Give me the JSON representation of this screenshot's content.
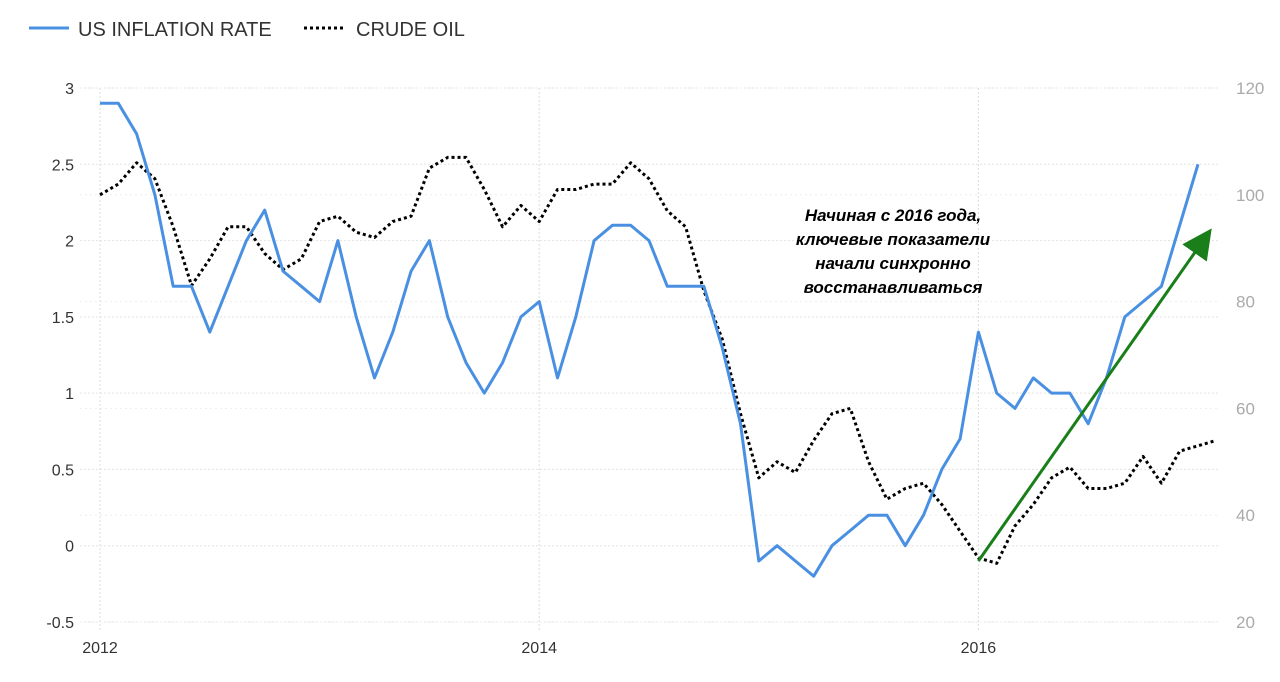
{
  "chart_data": {
    "type": "line",
    "legend_position": "top-left",
    "grid": true,
    "colors": {
      "inflation": "#4a90e2",
      "oil": "#000000",
      "arrow": "#1a7f1a"
    },
    "y_left": {
      "range": [
        -0.5,
        3
      ],
      "ticks": [
        "3",
        "2.5",
        "2",
        "1.5",
        "1",
        "0.5",
        "0",
        "-0.5"
      ]
    },
    "y_right": {
      "range": [
        20,
        120
      ],
      "ticks": [
        "120",
        "100",
        "80",
        "60",
        "40",
        "20"
      ]
    },
    "x_axis": {
      "range": [
        "2012-01",
        "2017-02"
      ],
      "ticks": [
        "2012",
        "2014",
        "2016"
      ]
    },
    "series": [
      {
        "name": "US INFLATION RATE",
        "axis": "left",
        "style": "solid",
        "x": [
          "2012-01",
          "2012-02",
          "2012-03",
          "2012-04",
          "2012-05",
          "2012-06",
          "2012-07",
          "2012-08",
          "2012-09",
          "2012-10",
          "2012-11",
          "2012-12",
          "2013-01",
          "2013-02",
          "2013-03",
          "2013-04",
          "2013-05",
          "2013-06",
          "2013-07",
          "2013-08",
          "2013-09",
          "2013-10",
          "2013-11",
          "2013-12",
          "2014-01",
          "2014-02",
          "2014-03",
          "2014-04",
          "2014-05",
          "2014-06",
          "2014-07",
          "2014-08",
          "2014-09",
          "2014-10",
          "2014-11",
          "2014-12",
          "2015-01",
          "2015-02",
          "2015-03",
          "2015-04",
          "2015-05",
          "2015-06",
          "2015-07",
          "2015-08",
          "2015-09",
          "2015-10",
          "2015-11",
          "2015-12",
          "2016-01",
          "2016-02",
          "2016-03",
          "2016-04",
          "2016-05",
          "2016-06",
          "2016-07",
          "2016-08",
          "2016-09",
          "2016-10",
          "2016-11",
          "2016-12",
          "2017-01"
        ],
        "values": [
          2.9,
          2.9,
          2.7,
          2.3,
          1.7,
          1.7,
          1.4,
          1.7,
          2.0,
          2.2,
          1.8,
          1.7,
          1.6,
          2.0,
          1.5,
          1.1,
          1.4,
          1.8,
          2.0,
          1.5,
          1.2,
          1.0,
          1.2,
          1.5,
          1.6,
          1.1,
          1.5,
          2.0,
          2.1,
          2.1,
          2.0,
          1.7,
          1.7,
          1.7,
          1.3,
          0.8,
          -0.1,
          0.0,
          -0.1,
          -0.2,
          0.0,
          0.1,
          0.2,
          0.2,
          0.0,
          0.2,
          0.5,
          0.7,
          1.4,
          1.0,
          0.9,
          1.1,
          1.0,
          1.0,
          0.8,
          1.1,
          1.5,
          1.6,
          1.7,
          2.1,
          2.5
        ]
      },
      {
        "name": "CRUDE OIL",
        "axis": "right",
        "style": "dotted",
        "x": [
          "2012-01",
          "2012-02",
          "2012-03",
          "2012-04",
          "2012-05",
          "2012-06",
          "2012-07",
          "2012-08",
          "2012-09",
          "2012-10",
          "2012-11",
          "2012-12",
          "2013-01",
          "2013-02",
          "2013-03",
          "2013-04",
          "2013-05",
          "2013-06",
          "2013-07",
          "2013-08",
          "2013-09",
          "2013-10",
          "2013-11",
          "2013-12",
          "2014-01",
          "2014-02",
          "2014-03",
          "2014-04",
          "2014-05",
          "2014-06",
          "2014-07",
          "2014-08",
          "2014-09",
          "2014-10",
          "2014-11",
          "2014-12",
          "2015-01",
          "2015-02",
          "2015-03",
          "2015-04",
          "2015-05",
          "2015-06",
          "2015-07",
          "2015-08",
          "2015-09",
          "2015-10",
          "2015-11",
          "2015-12",
          "2016-01",
          "2016-02",
          "2016-03",
          "2016-04",
          "2016-05",
          "2016-06",
          "2016-07",
          "2016-08",
          "2016-09",
          "2016-10",
          "2016-11",
          "2016-12",
          "2017-01",
          "2017-02"
        ],
        "values": [
          100,
          102,
          106,
          103,
          94,
          83,
          88,
          94,
          94,
          89,
          86,
          88,
          95,
          96,
          93,
          92,
          95,
          96,
          105,
          107,
          107,
          101,
          94,
          98,
          95,
          101,
          101,
          102,
          102,
          106,
          103,
          97,
          94,
          82,
          73,
          59,
          47,
          50,
          48,
          54,
          59,
          60,
          50,
          43,
          45,
          46,
          42,
          37,
          32,
          31,
          38,
          42,
          47,
          49,
          45,
          45,
          46,
          51,
          46,
          52,
          53,
          54
        ]
      }
    ],
    "annotation": {
      "lines": [
        "Начиная с 2016 года,",
        "ключевые показатели",
        "начали синхронно",
        "восстанавливаться"
      ],
      "arrow": {
        "from": [
          "2016-01",
          -0.1
        ],
        "to": [
          "2017-02",
          2.1
        ]
      }
    }
  }
}
